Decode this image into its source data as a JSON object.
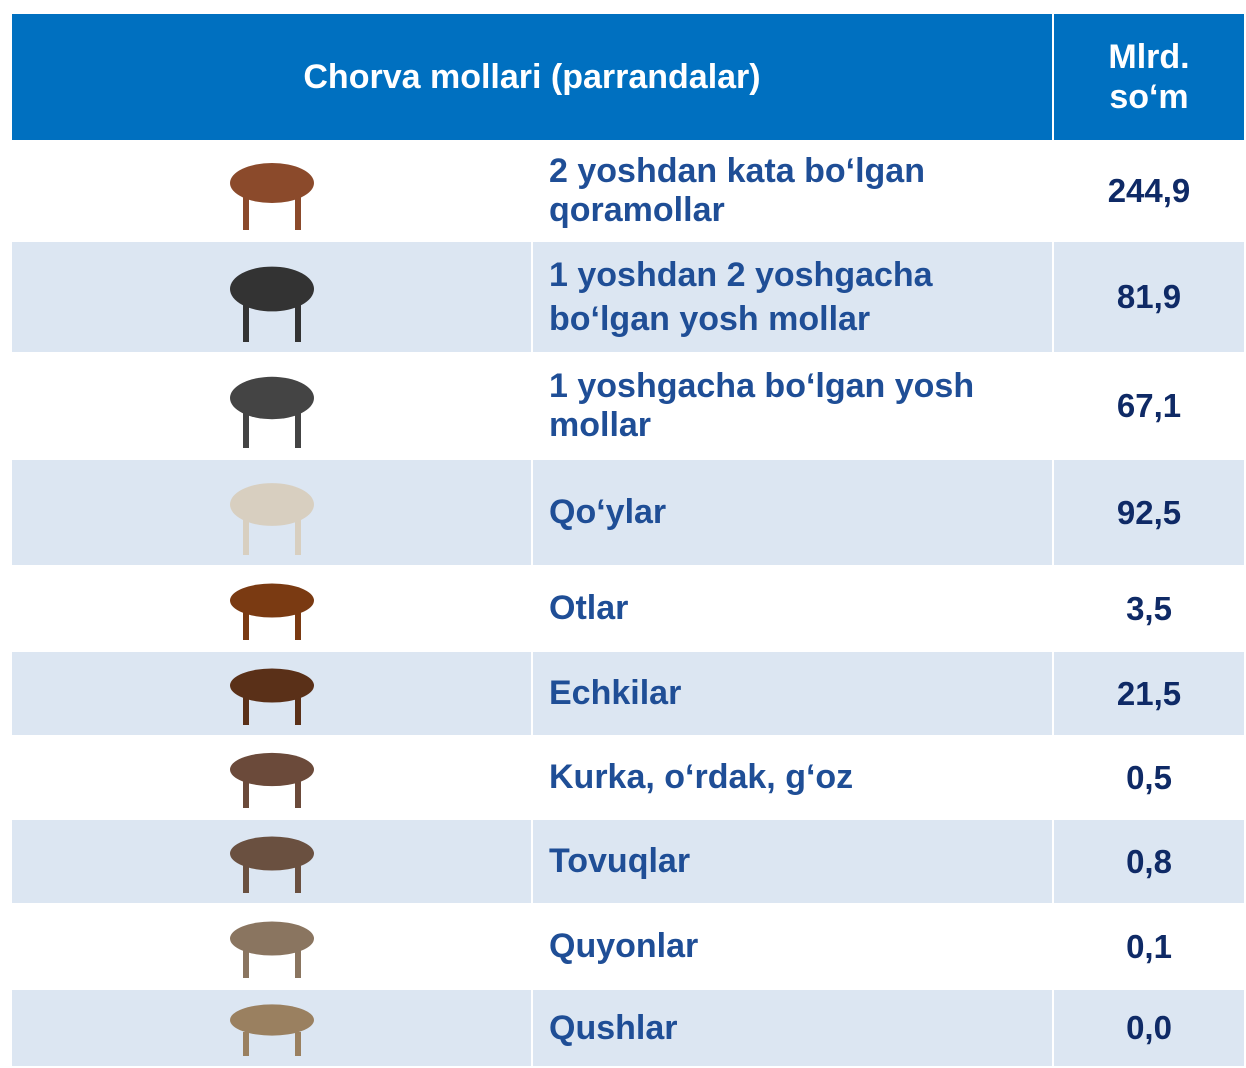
{
  "header": {
    "title": "Chorva mollari (parrandalar)",
    "unit": [
      "Mlrd.",
      "so‘m"
    ]
  },
  "table": {
    "rows": [
      [
        "2 yoshdan kata bo‘lgan qoramollar",
        "244,9"
      ],
      [
        "1 yoshdan 2 yoshgacha bo‘lgan yosh mollar",
        "81,9"
      ],
      [
        "1 yoshgacha bo‘lgan yosh mollar",
        "67,1"
      ],
      [
        "Qo‘ylar",
        "92,5"
      ],
      [
        "Otlar",
        "3,5"
      ],
      [
        "Echkilar",
        "21,5"
      ],
      [
        "Kurka, o‘rdak, g‘oz",
        "0,5"
      ],
      [
        "Tovuqlar",
        "0,8"
      ],
      [
        "Quyonlar",
        "0,1"
      ],
      [
        "Qushlar",
        "0,0"
      ]
    ]
  }
}
